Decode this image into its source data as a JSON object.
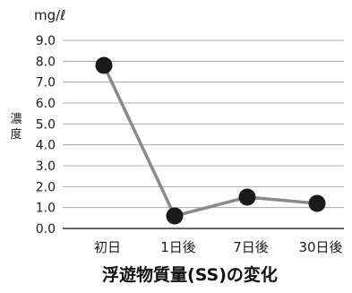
{
  "chart_data": {
    "type": "line",
    "title": "浮遊物質量(SS)の変化",
    "unit": "mg/ℓ",
    "ylabel": "濃度",
    "xlabel": "",
    "categories": [
      "初日",
      "1日後",
      "7日後",
      "30日後"
    ],
    "series": [
      {
        "values": [
          7.8,
          0.6,
          1.5,
          1.2
        ]
      }
    ],
    "ylim": [
      0,
      9
    ],
    "yticks": [
      "0.0",
      "1.0",
      "2.0",
      "3.0",
      "4.0",
      "5.0",
      "6.0",
      "7.0",
      "8.0",
      "9.0"
    ],
    "grid": true,
    "legend": "none",
    "colors": {
      "line": "#8a8a8a",
      "marker": "#1a1a1a",
      "grid": "#9a9a9a",
      "axis": "#333333"
    }
  }
}
